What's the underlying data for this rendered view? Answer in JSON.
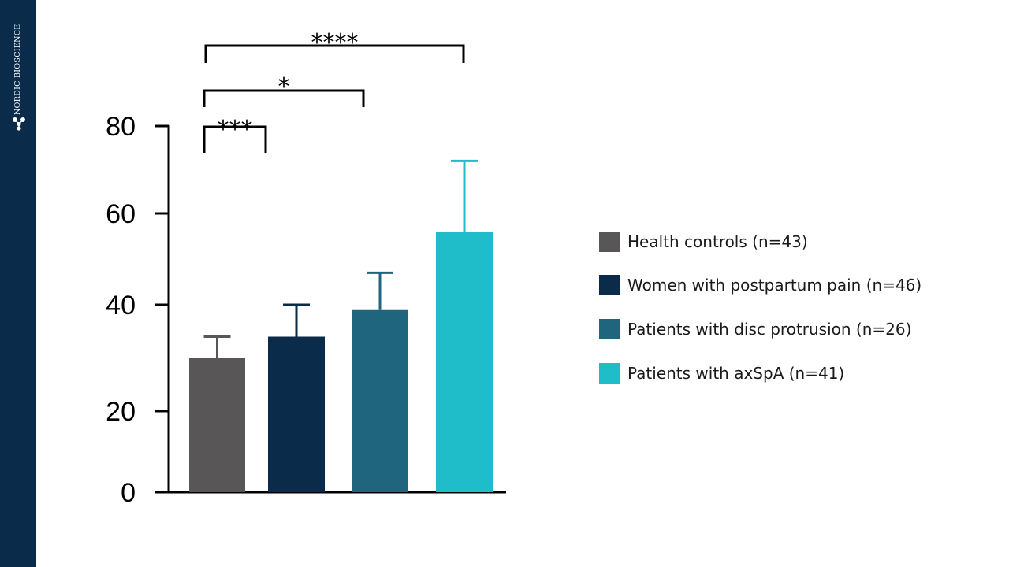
{
  "brand": {
    "name": "NORDIC BIOSCIENCE",
    "background_color": "#0a2b4a",
    "logo_icon": "molecule-icon"
  },
  "chart_data": {
    "type": "bar",
    "title": "",
    "xlabel": "",
    "ylabel": "",
    "categories": [
      "Health controls (n=43)",
      "Women with postpartum pain (n=46)",
      "Patients with disc protrusion (n=26)",
      "Patients with axSpA (n=41)"
    ],
    "values": [
      30,
      34,
      39,
      56
    ],
    "error_upper": [
      34,
      40,
      47,
      72
    ],
    "colors": [
      "#595657",
      "#0a2b4a",
      "#1f657d",
      "#1fbcca"
    ],
    "yticks": [
      0,
      20,
      40,
      60,
      80
    ],
    "yticks_labels": [
      "0",
      "20",
      "40",
      "60",
      "80"
    ],
    "ylim": [
      0,
      80
    ],
    "grid": false,
    "legend_position": "right",
    "significance": [
      {
        "from": 0,
        "to": 1,
        "label": "***"
      },
      {
        "from": 0,
        "to": 2,
        "label": "*"
      },
      {
        "from": 0,
        "to": 3,
        "label": "****"
      }
    ]
  }
}
